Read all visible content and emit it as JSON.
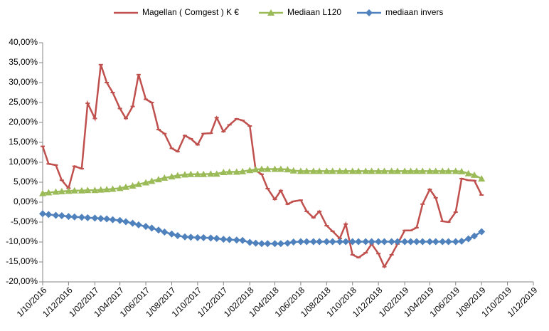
{
  "chart_data": {
    "type": "line",
    "x": [
      "1/10/2016",
      "15/10/2016",
      "1/11/2016",
      "15/11/2016",
      "1/12/2016",
      "15/12/2016",
      "1/01/2017",
      "15/01/2017",
      "1/02/2017",
      "15/02/2017",
      "1/03/2017",
      "15/03/2017",
      "1/04/2017",
      "15/04/2017",
      "1/05/2017",
      "15/05/2017",
      "1/06/2017",
      "15/06/2017",
      "1/07/2017",
      "15/07/2017",
      "1/08/2017",
      "15/08/2017",
      "1/09/2017",
      "15/09/2017",
      "1/10/2017",
      "15/10/2017",
      "1/11/2017",
      "15/11/2017",
      "1/12/2017",
      "15/12/2017",
      "1/01/2018",
      "15/01/2018",
      "1/02/2018",
      "15/02/2018",
      "1/03/2018",
      "15/03/2018",
      "1/04/2018",
      "15/04/2018",
      "1/05/2018",
      "15/05/2018",
      "1/06/2018",
      "15/06/2018",
      "1/07/2018",
      "15/07/2018",
      "1/08/2018",
      "15/08/2018",
      "1/09/2018",
      "15/09/2018",
      "1/10/2018",
      "15/10/2018",
      "1/11/2018",
      "15/11/2018",
      "1/12/2018",
      "15/12/2018",
      "1/01/2019",
      "15/01/2019",
      "1/02/2019",
      "15/02/2019",
      "1/03/2019",
      "15/03/2019",
      "1/04/2019",
      "15/04/2019",
      "1/05/2019",
      "15/05/2019",
      "1/06/2019",
      "15/06/2019",
      "1/07/2019",
      "15/07/2019",
      "1/08/2019"
    ],
    "series": [
      {
        "name": "Magellan ( Comgest ) K €",
        "color": "#c0504d",
        "marker": "dash",
        "values": [
          14,
          9.6,
          9.3,
          5.5,
          3.5,
          9,
          8.4,
          24.8,
          21,
          34.5,
          30,
          27.5,
          23.5,
          21,
          24,
          32,
          25.8,
          25,
          18.2,
          17.2,
          13.5,
          12.7,
          16.7,
          15.9,
          14.4,
          17.2,
          17.3,
          21.2,
          17.7,
          19.4,
          20.9,
          20.5,
          19.1,
          7.9,
          7,
          3.4,
          0.7,
          2.9,
          -0.5,
          0.2,
          0.5,
          -2.3,
          -3.9,
          -2.3,
          -5.9,
          -7.3,
          -9.1,
          -5.5,
          -13.2,
          -13.9,
          -12.7,
          -10.5,
          -12.9,
          -16.2,
          -13.2,
          -10.5,
          -7.1,
          -7.1,
          -6.4,
          -0.5,
          3.2,
          1.1,
          -4.8,
          -5,
          -2.5,
          5.9,
          5.5,
          5.4,
          1.8
        ]
      },
      {
        "name": "Mediaan L120",
        "color": "#9bbb59",
        "marker": "triangle",
        "values": [
          2.2,
          2.4,
          2.6,
          2.7,
          2.8,
          2.9,
          2.9,
          3.0,
          3.0,
          3.1,
          3.2,
          3.3,
          3.5,
          3.8,
          4.1,
          4.5,
          4.9,
          5.3,
          5.7,
          6.1,
          6.4,
          6.7,
          6.9,
          7.0,
          7.0,
          7.0,
          7.1,
          7.1,
          7.5,
          7.6,
          7.6,
          7.7,
          8.0,
          8.2,
          8.3,
          8.3,
          8.3,
          8.3,
          8.2,
          7.9,
          7.8,
          7.8,
          7.8,
          7.8,
          7.8,
          7.8,
          7.8,
          7.8,
          7.8,
          7.8,
          7.8,
          7.8,
          7.8,
          7.8,
          7.8,
          7.8,
          7.8,
          7.8,
          7.8,
          7.8,
          7.8,
          7.8,
          7.8,
          7.8,
          7.8,
          7.7,
          7.2,
          6.8,
          5.9
        ]
      },
      {
        "name": "mediaan invers",
        "color": "#4f81bd",
        "marker": "diamond",
        "values": [
          -2.9,
          -3.1,
          -3.3,
          -3.4,
          -3.6,
          -3.7,
          -3.8,
          -3.9,
          -4.0,
          -4.1,
          -4.2,
          -4.4,
          -4.6,
          -4.9,
          -5.3,
          -5.7,
          -6.1,
          -6.5,
          -7.0,
          -7.5,
          -8.0,
          -8.4,
          -8.7,
          -8.8,
          -8.9,
          -8.9,
          -9.0,
          -9.1,
          -9.3,
          -9.4,
          -9.5,
          -9.6,
          -10.1,
          -10.3,
          -10.4,
          -10.4,
          -10.4,
          -10.4,
          -10.3,
          -10.0,
          -9.9,
          -9.9,
          -9.9,
          -9.9,
          -9.9,
          -9.9,
          -9.9,
          -9.9,
          -9.9,
          -9.9,
          -9.9,
          -9.9,
          -9.9,
          -9.9,
          -9.9,
          -9.9,
          -9.9,
          -9.9,
          -9.9,
          -9.9,
          -9.9,
          -9.9,
          -9.9,
          -9.9,
          -9.9,
          -9.8,
          -9.2,
          -8.5,
          -7.4
        ]
      }
    ],
    "xlim": [
      "1/10/2016",
      "1/12/2019"
    ],
    "xticks": [
      "1/10/2016",
      "1/12/2016",
      "1/02/2017",
      "1/04/2017",
      "1/06/2017",
      "1/08/2017",
      "1/10/2017",
      "1/12/2017",
      "1/02/2018",
      "1/04/2018",
      "1/06/2018",
      "1/08/2018",
      "1/10/2018",
      "1/12/2018",
      "1/02/2019",
      "1/04/2019",
      "1/06/2019",
      "1/08/2019",
      "1/10/2019",
      "1/12/2019"
    ],
    "ylim": [
      -20,
      40
    ],
    "yticks": [
      {
        "value": -20,
        "label": "-20,00%"
      },
      {
        "value": -15,
        "label": "-15,00%"
      },
      {
        "value": -10,
        "label": "-10,00%"
      },
      {
        "value": -5,
        "label": "-5,00%"
      },
      {
        "value": 0,
        "label": "0,00%"
      },
      {
        "value": 5,
        "label": "5,00%"
      },
      {
        "value": 10,
        "label": "10,00%"
      },
      {
        "value": 15,
        "label": "15,00%"
      },
      {
        "value": 20,
        "label": "20,00%"
      },
      {
        "value": 25,
        "label": "25,00%"
      },
      {
        "value": 30,
        "label": "30,00%"
      },
      {
        "value": 35,
        "label": "35,00%"
      },
      {
        "value": 40,
        "label": "40,00%"
      }
    ],
    "grid": false,
    "legend": "top"
  }
}
